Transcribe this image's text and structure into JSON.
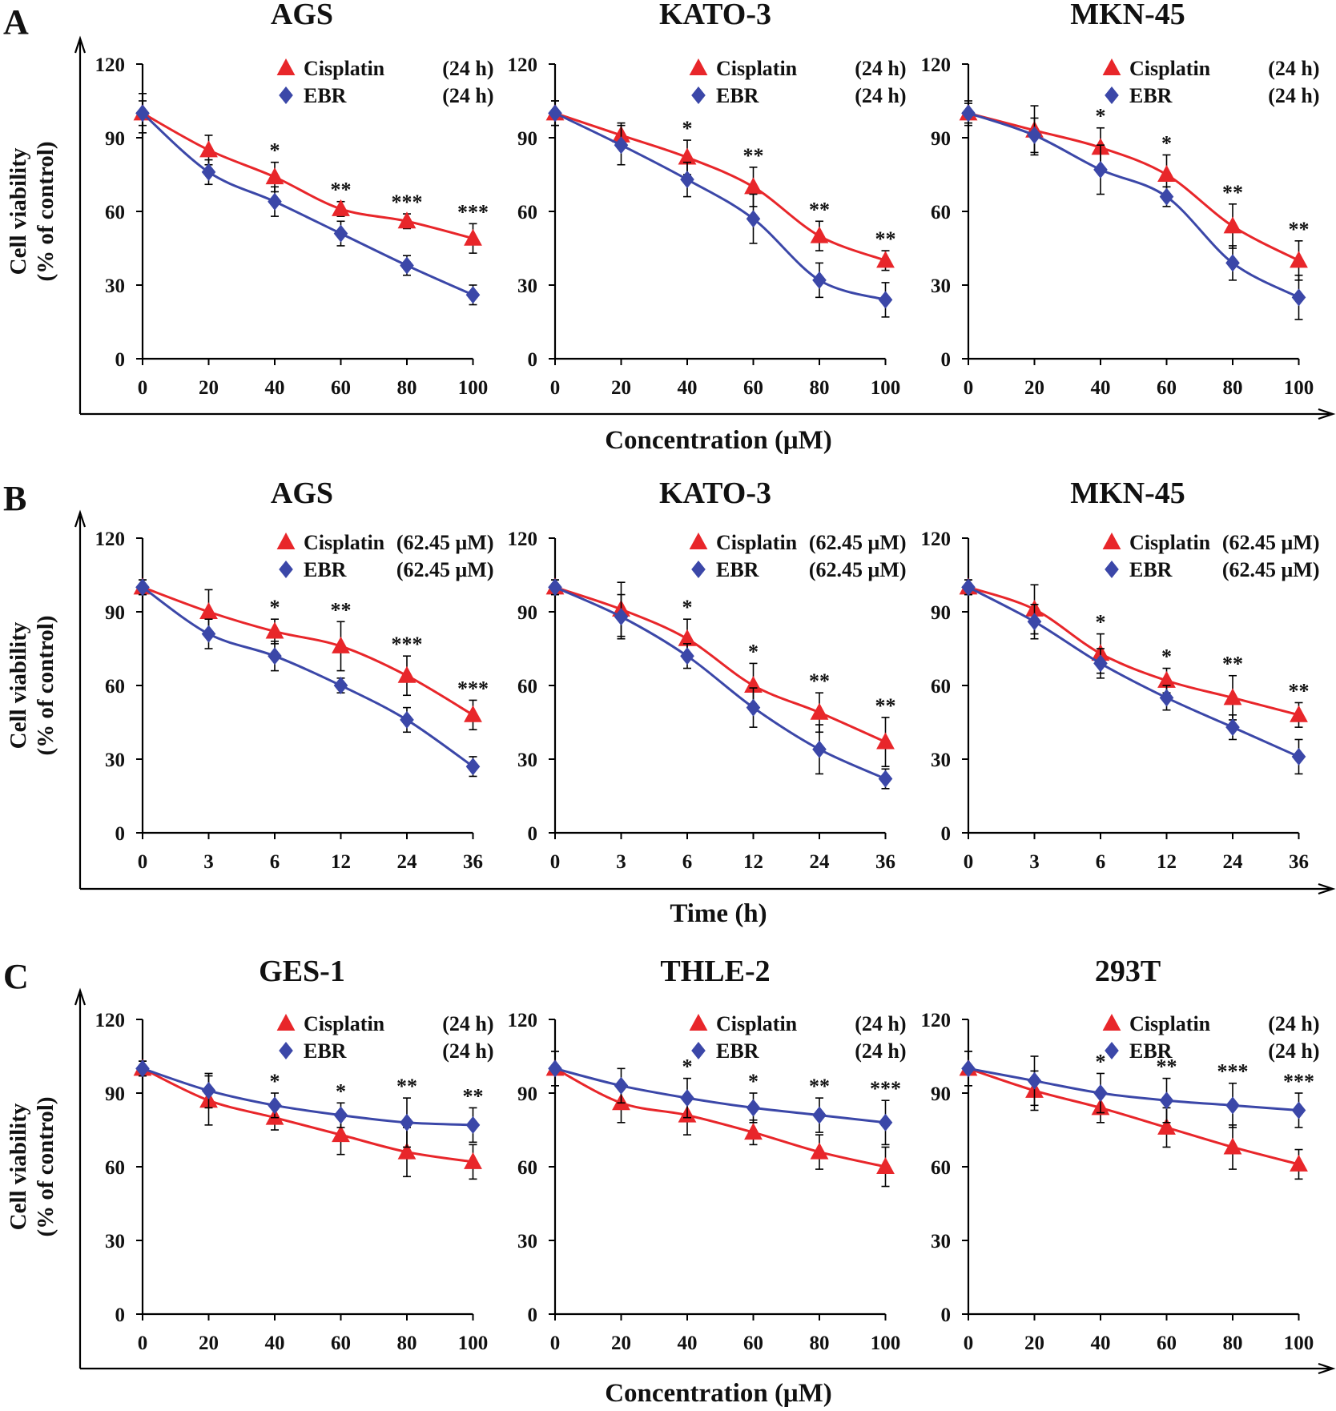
{
  "colors": {
    "cisplatin": "#e8262a",
    "ebr": "#3b47a8",
    "axis": "#000000"
  },
  "rows": [
    {
      "label": "A",
      "xlabel": "Concentration (μM)"
    },
    {
      "label": "B",
      "xlabel": "Time (h)"
    },
    {
      "label": "C",
      "xlabel": "Concentration (μM)"
    }
  ],
  "ylabel_line1": "Cell viability",
  "ylabel_line2": "(% of control)",
  "chart_data": [
    {
      "type": "line",
      "title": "AGS",
      "row": 0,
      "col": 0,
      "categories": [
        "0",
        "20",
        "40",
        "60",
        "80",
        "100"
      ],
      "ylim": [
        0,
        120
      ],
      "yticks": [
        0,
        30,
        60,
        90,
        120
      ],
      "ylabel": "Cell viability (% of control)",
      "xlabel": "Concentration (μM)",
      "legend_order": [
        "cisplatin",
        "ebr"
      ],
      "series": [
        {
          "key": "cisplatin",
          "name": "Cisplatin",
          "condition": "(24 h)",
          "marker": "triangle",
          "values": [
            100,
            85,
            74,
            61,
            56,
            49
          ],
          "errors": [
            5,
            6,
            6,
            3,
            3,
            6
          ]
        },
        {
          "key": "ebr",
          "name": "EBR",
          "condition": "(24 h)",
          "marker": "diamond",
          "values": [
            100,
            76,
            64,
            51,
            38,
            26
          ],
          "errors": [
            8,
            5,
            6,
            5,
            4,
            4
          ]
        }
      ],
      "significance": [
        "",
        "",
        "*",
        "**",
        "***",
        "***"
      ]
    },
    {
      "type": "line",
      "title": "KATO-3",
      "row": 0,
      "col": 1,
      "categories": [
        "0",
        "20",
        "40",
        "60",
        "80",
        "100"
      ],
      "ylim": [
        0,
        120
      ],
      "yticks": [
        0,
        30,
        60,
        90,
        120
      ],
      "ylabel": "Cell viability (% of control)",
      "xlabel": "Concentration (μM)",
      "legend_order": [
        "cisplatin",
        "ebr"
      ],
      "series": [
        {
          "key": "cisplatin",
          "name": "Cisplatin",
          "condition": "(24 h)",
          "marker": "triangle",
          "values": [
            100,
            91,
            82,
            70,
            50,
            40
          ],
          "errors": [
            5,
            5,
            7,
            8,
            6,
            4
          ]
        },
        {
          "key": "ebr",
          "name": "EBR",
          "condition": "(24 h)",
          "marker": "diamond",
          "values": [
            100,
            87,
            73,
            57,
            32,
            24
          ],
          "errors": [
            5,
            8,
            7,
            10,
            7,
            7
          ]
        }
      ],
      "significance": [
        "",
        "",
        "*",
        "**",
        "**",
        "**"
      ]
    },
    {
      "type": "line",
      "title": "MKN-45",
      "row": 0,
      "col": 2,
      "categories": [
        "0",
        "20",
        "40",
        "60",
        "80",
        "100"
      ],
      "ylim": [
        0,
        120
      ],
      "yticks": [
        0,
        30,
        60,
        90,
        120
      ],
      "ylabel": "Cell viability (% of control)",
      "xlabel": "Concentration (μM)",
      "legend_order": [
        "cisplatin",
        "ebr"
      ],
      "series": [
        {
          "key": "cisplatin",
          "name": "Cisplatin",
          "condition": "(24 h)",
          "marker": "triangle",
          "values": [
            100,
            93,
            86,
            75,
            54,
            40
          ],
          "errors": [
            5,
            10,
            8,
            8,
            9,
            8
          ]
        },
        {
          "key": "ebr",
          "name": "EBR",
          "condition": "(24 h)",
          "marker": "diamond",
          "values": [
            100,
            91,
            77,
            66,
            39,
            25
          ],
          "errors": [
            4,
            7,
            10,
            4,
            7,
            9
          ]
        }
      ],
      "significance": [
        "",
        "",
        "*",
        "*",
        "**",
        "**"
      ]
    },
    {
      "type": "line",
      "title": "AGS",
      "row": 1,
      "col": 0,
      "categories": [
        "0",
        "3",
        "6",
        "12",
        "24",
        "36"
      ],
      "ylim": [
        0,
        120
      ],
      "yticks": [
        0,
        30,
        60,
        90,
        120
      ],
      "ylabel": "Cell viability (% of control)",
      "xlabel": "Time (h)",
      "legend_order": [
        "cisplatin",
        "ebr"
      ],
      "series": [
        {
          "key": "cisplatin",
          "name": "Cisplatin",
          "condition": "(62.45 μM)",
          "marker": "triangle",
          "values": [
            100,
            90,
            82,
            76,
            64,
            48
          ],
          "errors": [
            3,
            9,
            5,
            10,
            8,
            6
          ]
        },
        {
          "key": "ebr",
          "name": "EBR",
          "condition": "(62.45 μM)",
          "marker": "diamond",
          "values": [
            100,
            81,
            72,
            60,
            46,
            27
          ],
          "errors": [
            3,
            6,
            6,
            3,
            5,
            4
          ]
        }
      ],
      "significance": [
        "",
        "",
        "*",
        "**",
        "***",
        "***"
      ]
    },
    {
      "type": "line",
      "title": "KATO-3",
      "row": 1,
      "col": 1,
      "categories": [
        "0",
        "3",
        "6",
        "12",
        "24",
        "36"
      ],
      "ylim": [
        0,
        120
      ],
      "yticks": [
        0,
        30,
        60,
        90,
        120
      ],
      "ylabel": "Cell viability (% of control)",
      "xlabel": "Time (h)",
      "legend_order": [
        "cisplatin",
        "ebr"
      ],
      "series": [
        {
          "key": "cisplatin",
          "name": "Cisplatin",
          "condition": "(62.45 μM)",
          "marker": "triangle",
          "values": [
            100,
            91,
            79,
            60,
            49,
            37
          ],
          "errors": [
            3,
            11,
            8,
            9,
            8,
            10
          ]
        },
        {
          "key": "ebr",
          "name": "EBR",
          "condition": "(62.45 μM)",
          "marker": "diamond",
          "values": [
            100,
            88,
            72,
            51,
            34,
            22
          ],
          "errors": [
            3,
            9,
            5,
            8,
            10,
            4
          ]
        }
      ],
      "significance": [
        "",
        "",
        "*",
        "*",
        "**",
        "**"
      ]
    },
    {
      "type": "line",
      "title": "MKN-45",
      "row": 1,
      "col": 2,
      "categories": [
        "0",
        "3",
        "6",
        "12",
        "24",
        "36"
      ],
      "ylim": [
        0,
        120
      ],
      "yticks": [
        0,
        30,
        60,
        90,
        120
      ],
      "ylabel": "Cell viability (% of control)",
      "xlabel": "Time (h)",
      "legend_order": [
        "cisplatin",
        "ebr"
      ],
      "series": [
        {
          "key": "cisplatin",
          "name": "Cisplatin",
          "condition": "(62.45 μM)",
          "marker": "triangle",
          "values": [
            100,
            91,
            73,
            62,
            55,
            48
          ],
          "errors": [
            3,
            10,
            8,
            5,
            9,
            5
          ]
        },
        {
          "key": "ebr",
          "name": "EBR",
          "condition": "(62.45 μM)",
          "marker": "diamond",
          "values": [
            100,
            86,
            69,
            55,
            43,
            31
          ],
          "errors": [
            3,
            7,
            6,
            5,
            5,
            7
          ]
        }
      ],
      "significance": [
        "",
        "",
        "*",
        "*",
        "**",
        "**"
      ]
    },
    {
      "type": "line",
      "title": "GES-1",
      "row": 2,
      "col": 0,
      "categories": [
        "0",
        "20",
        "40",
        "60",
        "80",
        "100"
      ],
      "ylim": [
        0,
        120
      ],
      "yticks": [
        0,
        30,
        60,
        90,
        120
      ],
      "ylabel": "Cell viability (% of control)",
      "xlabel": "Concentration (μM)",
      "legend_order": [
        "cisplatin",
        "ebr"
      ],
      "series": [
        {
          "key": "cisplatin",
          "name": "Cisplatin",
          "condition": "(24 h)",
          "marker": "triangle",
          "values": [
            100,
            87,
            80,
            73,
            66,
            62
          ],
          "errors": [
            3,
            10,
            5,
            8,
            10,
            7
          ]
        },
        {
          "key": "ebr",
          "name": "EBR",
          "condition": "(24 h)",
          "marker": "diamond",
          "values": [
            100,
            91,
            85,
            81,
            78,
            77
          ],
          "errors": [
            3,
            7,
            5,
            5,
            10,
            7
          ]
        }
      ],
      "significance": [
        "",
        "",
        "*",
        "*",
        "**",
        "**"
      ]
    },
    {
      "type": "line",
      "title": "THLE-2",
      "row": 2,
      "col": 1,
      "categories": [
        "0",
        "20",
        "40",
        "60",
        "80",
        "100"
      ],
      "ylim": [
        0,
        120
      ],
      "yticks": [
        0,
        30,
        60,
        90,
        120
      ],
      "ylabel": "Cell viability (% of control)",
      "xlabel": "Concentration (μM)",
      "legend_order": [
        "cisplatin",
        "ebr"
      ],
      "series": [
        {
          "key": "cisplatin",
          "name": "Cisplatin",
          "condition": "(24 h)",
          "marker": "triangle",
          "values": [
            100,
            86,
            81,
            74,
            66,
            60
          ],
          "errors": [
            7,
            8,
            8,
            5,
            7,
            8
          ]
        },
        {
          "key": "ebr",
          "name": "EBR",
          "condition": "(24 h)",
          "marker": "diamond",
          "values": [
            100,
            93,
            88,
            84,
            81,
            78
          ],
          "errors": [
            7,
            7,
            8,
            6,
            7,
            9
          ]
        }
      ],
      "significance": [
        "",
        "",
        "*",
        "*",
        "**",
        "***"
      ]
    },
    {
      "type": "line",
      "title": "293T",
      "row": 2,
      "col": 2,
      "categories": [
        "0",
        "20",
        "40",
        "60",
        "80",
        "100"
      ],
      "ylim": [
        0,
        120
      ],
      "yticks": [
        0,
        30,
        60,
        90,
        120
      ],
      "ylabel": "Cell viability (% of control)",
      "xlabel": "Concentration (μM)",
      "legend_order": [
        "cisplatin",
        "ebr"
      ],
      "series": [
        {
          "key": "cisplatin",
          "name": "Cisplatin",
          "condition": "(24 h)",
          "marker": "triangle",
          "values": [
            100,
            91,
            84,
            76,
            68,
            61
          ],
          "errors": [
            7,
            8,
            6,
            8,
            9,
            6
          ]
        },
        {
          "key": "ebr",
          "name": "EBR",
          "condition": "(24 h)",
          "marker": "diamond",
          "values": [
            100,
            95,
            90,
            87,
            85,
            83
          ],
          "errors": [
            7,
            10,
            8,
            9,
            9,
            7
          ]
        }
      ],
      "significance": [
        "",
        "",
        "*",
        "**",
        "***",
        "***"
      ]
    }
  ]
}
